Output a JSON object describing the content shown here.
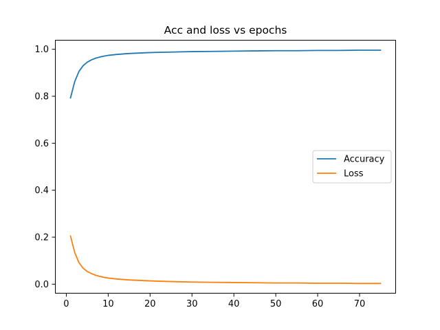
{
  "chart_data": {
    "type": "line",
    "title": "Acc and loss vs epochs",
    "xlabel": "",
    "ylabel": "",
    "xlim": [
      -2.7,
      78.7
    ],
    "ylim": [
      -0.04,
      1.04
    ],
    "xticks": [
      0,
      10,
      20,
      30,
      40,
      50,
      60,
      70
    ],
    "yticks": [
      0.0,
      0.2,
      0.4,
      0.6,
      0.8,
      1.0
    ],
    "xtick_labels": [
      "0",
      "10",
      "20",
      "30",
      "40",
      "50",
      "60",
      "70"
    ],
    "ytick_labels": [
      "0.0",
      "0.2",
      "0.4",
      "0.6",
      "0.8",
      "1.0"
    ],
    "grid": false,
    "legend_position": "center-right",
    "x": [
      1,
      2,
      3,
      4,
      5,
      6,
      7,
      8,
      9,
      10,
      12,
      15,
      20,
      25,
      30,
      35,
      40,
      45,
      50,
      55,
      60,
      65,
      70,
      75
    ],
    "series": [
      {
        "name": "Accuracy",
        "color": "#1f77b4",
        "values": [
          0.793,
          0.862,
          0.905,
          0.93,
          0.945,
          0.955,
          0.962,
          0.967,
          0.971,
          0.974,
          0.978,
          0.982,
          0.986,
          0.988,
          0.99,
          0.991,
          0.992,
          0.993,
          0.994,
          0.994,
          0.995,
          0.995,
          0.996,
          0.996
        ]
      },
      {
        "name": "Loss",
        "color": "#ff7f0e",
        "values": [
          0.205,
          0.135,
          0.092,
          0.068,
          0.054,
          0.045,
          0.038,
          0.033,
          0.029,
          0.026,
          0.022,
          0.018,
          0.014,
          0.011,
          0.009,
          0.008,
          0.007,
          0.006,
          0.005,
          0.005,
          0.004,
          0.004,
          0.003,
          0.003
        ]
      }
    ]
  }
}
